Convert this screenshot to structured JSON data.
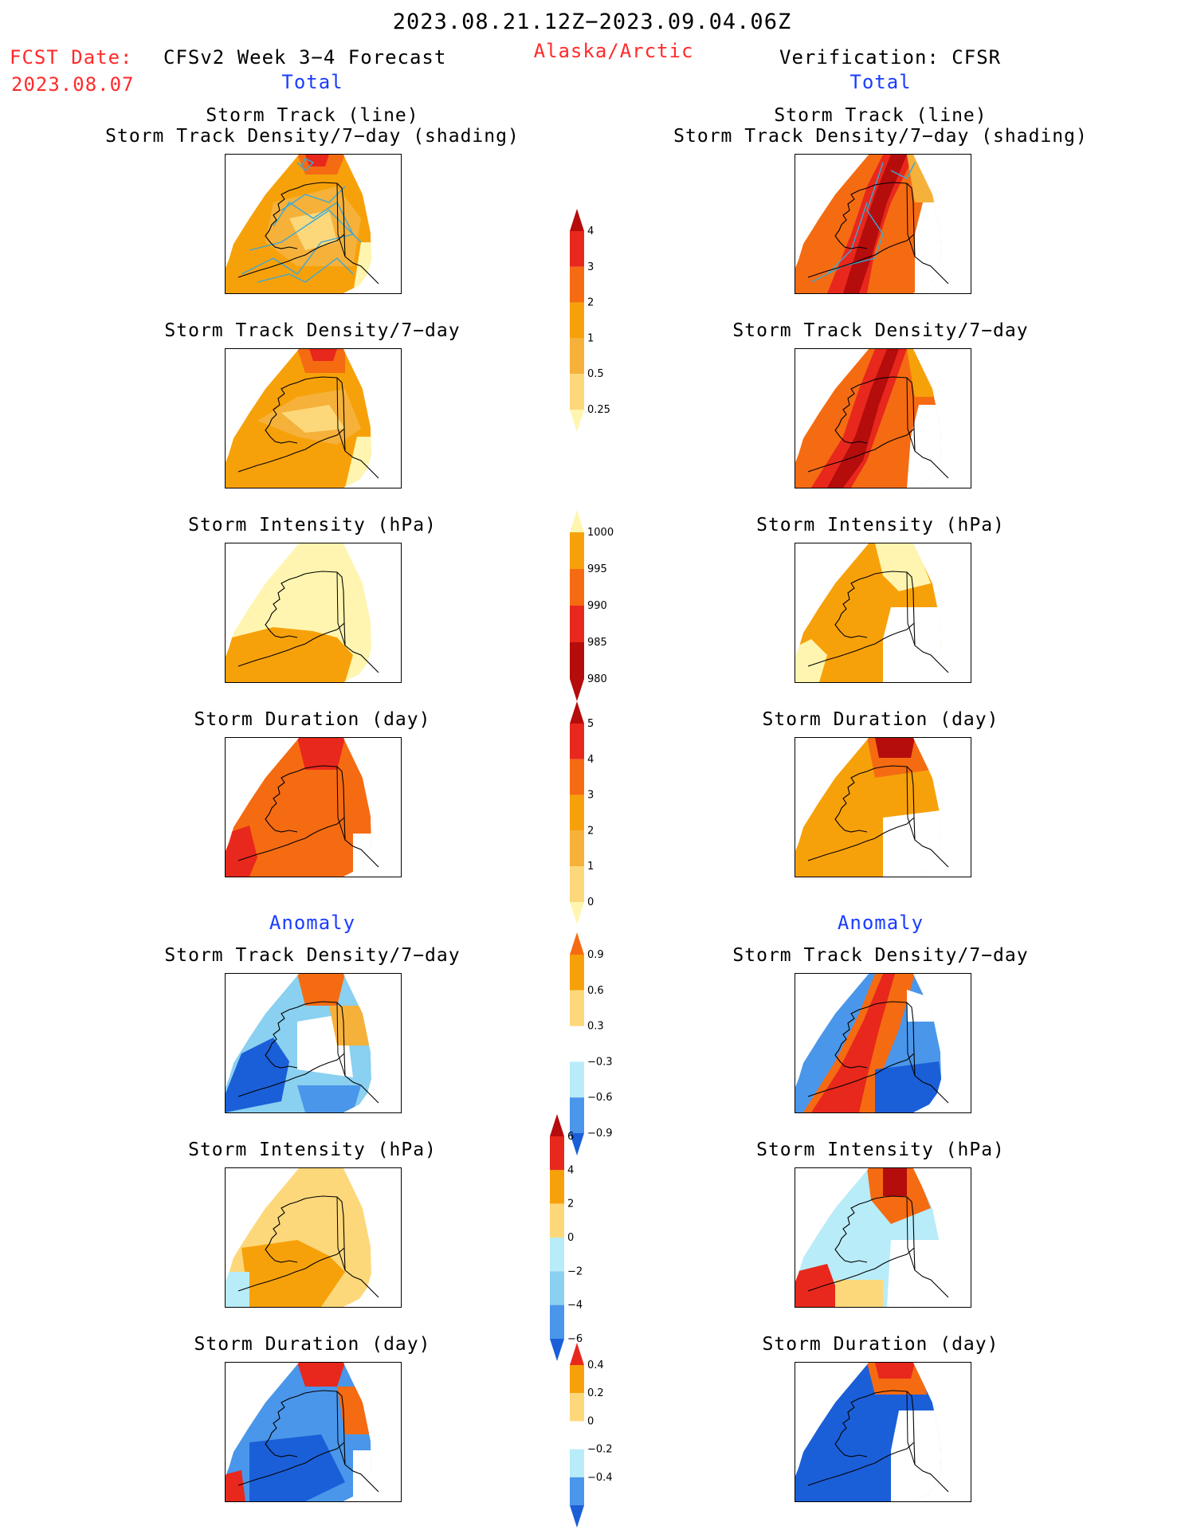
{
  "header": {
    "date_range": "2023.08.21.12Z−2023.09.04.06Z",
    "fcst_label": "FCST Date:",
    "fcst_date": "2023.08.07",
    "forecast_title": "CFSv2 Week 3−4 Forecast",
    "region": "Alaska/Arctic",
    "verification": "Verification: CFSR",
    "total_left": "Total",
    "total_right": "Total",
    "anomaly_left": "Anomaly",
    "anomaly_right": "Anomaly"
  },
  "panels": {
    "track_line": "Storm Track (line)",
    "track_shading": "Storm Track Density/7−day (shading)",
    "density": "Storm Track Density/7−day",
    "intensity": "Storm Intensity (hPa)",
    "duration": "Storm Duration (day)"
  },
  "colors": {
    "pale_yellow": "#fff5b0",
    "yellow": "#fdd87a",
    "light_orange": "#f5b13a",
    "orange": "#f7a10a",
    "dark_orange": "#f56b12",
    "red": "#e8281c",
    "dark_red": "#b50c0c",
    "white": "#ffffff",
    "pale_blue": "#b8ecf8",
    "light_blue": "#8ad0f0",
    "mid_blue": "#4a96ea",
    "blue": "#1a5fd8",
    "track_line": "#3aa8d8"
  },
  "chart_data": [
    {
      "type": "heatmap",
      "title": "Storm Track Density/7−day (shading) — Total",
      "colorbar_ticks": [
        "4",
        "3",
        "2",
        "1",
        "0.5",
        "0.25"
      ],
      "series": [
        {
          "name": "CFSv2 Week 3−4 Forecast",
          "description": "orange shading 1–3 with red near the north, storm track lines overlaid"
        },
        {
          "name": "Verification: CFSR",
          "description": "red 3–4+ band along western Alaska"
        }
      ]
    },
    {
      "type": "heatmap",
      "title": "Storm Intensity (hPa) — Total",
      "colorbar_ticks": [
        "1000",
        "995",
        "990",
        "985",
        "980"
      ]
    },
    {
      "type": "heatmap",
      "title": "Storm Duration (day) — Total",
      "colorbar_ticks": [
        "5",
        "4",
        "3",
        "2",
        "1",
        "0"
      ]
    },
    {
      "type": "heatmap",
      "title": "Storm Track Density/7−day — Anomaly",
      "colorbar_ticks": [
        "0.9",
        "0.6",
        "0.3",
        "−0.3",
        "−0.6",
        "−0.9"
      ]
    },
    {
      "type": "heatmap",
      "title": "Storm Intensity (hPa) — Anomaly",
      "colorbar_ticks": [
        "6",
        "4",
        "2",
        "0",
        "−2",
        "−4",
        "−6"
      ]
    },
    {
      "type": "heatmap",
      "title": "Storm Duration (day) — Anomaly",
      "colorbar_ticks": [
        "0.4",
        "0.2",
        "0",
        "−0.2",
        "−0.4"
      ]
    }
  ]
}
